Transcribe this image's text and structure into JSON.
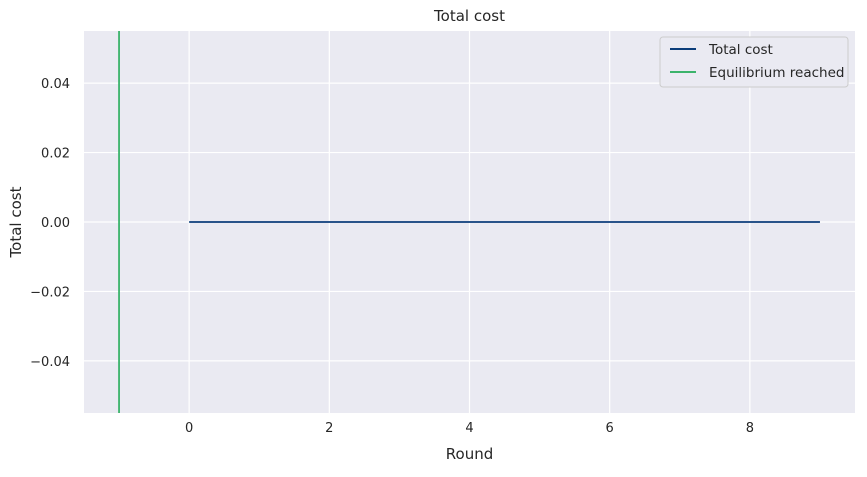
{
  "chart_data": {
    "type": "line",
    "title": "Total cost",
    "xlabel": "Round",
    "ylabel": "Total cost",
    "xlim": [
      -1.5,
      9.5
    ],
    "ylim": [
      -0.055,
      0.055
    ],
    "xticks": [
      0,
      2,
      4,
      6,
      8
    ],
    "xtick_labels": [
      "0",
      "2",
      "4",
      "6",
      "8"
    ],
    "yticks": [
      0.04,
      0.02,
      0.0,
      -0.02,
      -0.04
    ],
    "ytick_labels": [
      "0.04",
      "0.02",
      "0.00",
      "−0.02",
      "−0.04"
    ],
    "grid": true,
    "legend_position": "top-right",
    "series": [
      {
        "name": "Total cost",
        "color": "#0b3d7a",
        "x": [
          0,
          1,
          2,
          3,
          4,
          5,
          6,
          7,
          8,
          9
        ],
        "y": [
          0,
          0,
          0,
          0,
          0,
          0,
          0,
          0,
          0,
          0
        ]
      }
    ],
    "vlines": [
      {
        "name": "Equilibrium reached",
        "color": "#3bb36b",
        "x": -1
      }
    ],
    "colors": {
      "plot_bg": "#eaeaf2",
      "grid": "#ffffff"
    }
  }
}
